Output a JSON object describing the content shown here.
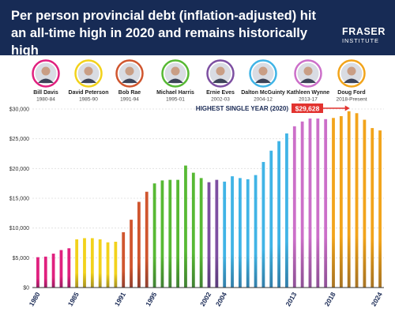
{
  "header": {
    "title": "Per person provincial debt (inflation-adjusted) hit an all-time high in 2020 and remains historically high",
    "logo_line1": "FRASER",
    "logo_line2": "INSTITUTE"
  },
  "premiers": [
    {
      "name": "Bill Davis",
      "years": "1980-84",
      "color": "#e0217f"
    },
    {
      "name": "David Peterson",
      "years": "1985-90",
      "color": "#f2d21b"
    },
    {
      "name": "Bob Rae",
      "years": "1991-94",
      "color": "#d0562f"
    },
    {
      "name": "Michael Harris",
      "years": "1995-01",
      "color": "#57b934"
    },
    {
      "name": "Ernie Eves",
      "years": "2002-03",
      "color": "#7d4fa1"
    },
    {
      "name": "Dalton McGuinty",
      "years": "2004-12",
      "color": "#40b4e6"
    },
    {
      "name": "Kathleen Wynne",
      "years": "2013-17",
      "color": "#cc6fc9"
    },
    {
      "name": "Doug Ford",
      "years": "2018-Present",
      "color": "#f2a41b"
    }
  ],
  "annotation": {
    "label": "HIGHEST SINGLE YEAR (2020)",
    "value_label": "$29,628",
    "year": 2020,
    "color": "#e2332f"
  },
  "chart_data": {
    "type": "bar",
    "title": "Per person provincial debt (inflation-adjusted) hit an all-time high in 2020 and remains historically high",
    "xlabel": "",
    "ylabel": "",
    "ylim": [
      0,
      30000
    ],
    "y_ticks": [
      "$0",
      "$5,000",
      "$10,000",
      "$15,000",
      "$20,000",
      "$25,000",
      "$30,000"
    ],
    "x_tick_labels": [
      "1980",
      "1985",
      "1991",
      "1995",
      "2002",
      "2004",
      "2013",
      "2018",
      "2024"
    ],
    "categories": [
      1980,
      1981,
      1982,
      1983,
      1984,
      1985,
      1986,
      1987,
      1988,
      1989,
      1990,
      1991,
      1992,
      1993,
      1994,
      1995,
      1996,
      1997,
      1998,
      1999,
      2000,
      2001,
      2002,
      2003,
      2004,
      2005,
      2006,
      2007,
      2008,
      2009,
      2010,
      2011,
      2012,
      2013,
      2014,
      2015,
      2016,
      2017,
      2018,
      2019,
      2020,
      2021,
      2022,
      2023,
      2024
    ],
    "values": [
      5100,
      5200,
      5700,
      6300,
      6600,
      8100,
      8300,
      8300,
      8100,
      7600,
      7700,
      9300,
      11400,
      14400,
      16100,
      17500,
      18000,
      18100,
      18100,
      20500,
      19300,
      18400,
      17700,
      18100,
      17800,
      18700,
      18400,
      18200,
      18900,
      21100,
      23000,
      24600,
      25900,
      27100,
      27900,
      28400,
      28400,
      28300,
      28500,
      28800,
      29628,
      29300,
      28200,
      26800,
      26400
    ],
    "grid": true,
    "legend": "top"
  }
}
